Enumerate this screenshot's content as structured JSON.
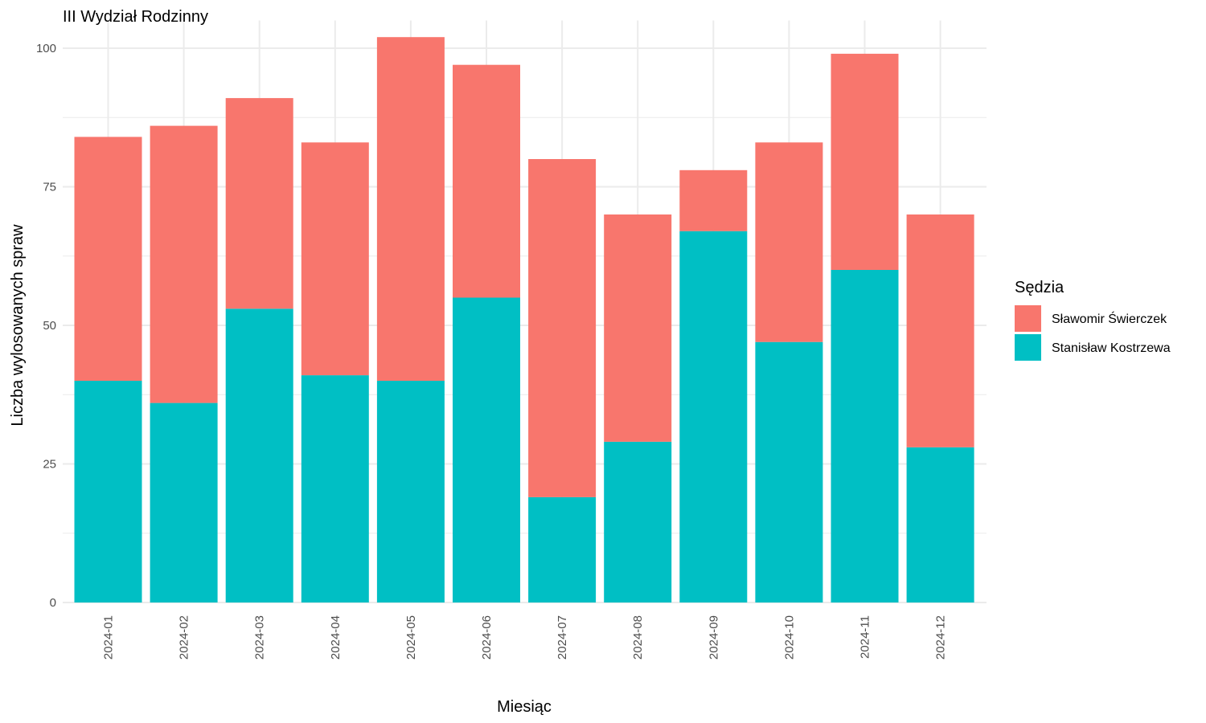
{
  "chart_data": {
    "type": "bar",
    "stacked": true,
    "title": "III Wydział Rodzinny",
    "xlabel": "Miesiąc",
    "ylabel": "Liczba wylosowanych spraw",
    "ylim": [
      0,
      105
    ],
    "yticks": [
      0,
      25,
      50,
      75,
      100
    ],
    "categories": [
      "2024-01",
      "2024-02",
      "2024-03",
      "2024-04",
      "2024-05",
      "2024-06",
      "2024-07",
      "2024-08",
      "2024-09",
      "2024-10",
      "2024-11",
      "2024-12"
    ],
    "series": [
      {
        "name": "Stanisław Kostrzewa",
        "color": "#00BFC4",
        "values": [
          40,
          36,
          53,
          41,
          40,
          55,
          19,
          29,
          67,
          47,
          60,
          28
        ]
      },
      {
        "name": "Sławomir Świerczek",
        "color": "#F8766D",
        "values": [
          44,
          50,
          38,
          42,
          62,
          42,
          61,
          41,
          11,
          36,
          39,
          42
        ]
      }
    ],
    "legend": {
      "title": "Sędzia",
      "position": "right",
      "order": [
        "Sławomir Świerczek",
        "Stanisław Kostrzewa"
      ]
    },
    "grid": true
  }
}
